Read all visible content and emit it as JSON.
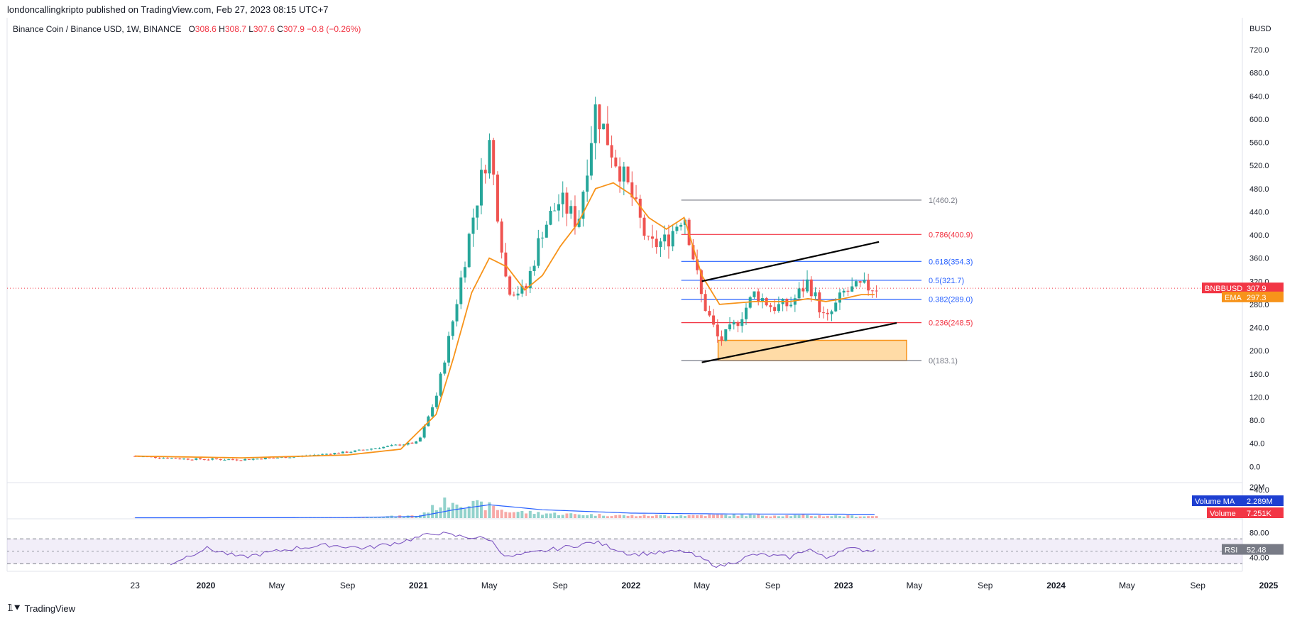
{
  "header": {
    "published": "londoncallingkripto published on TradingView.com, Feb 27, 2023 08:15 UTC+7"
  },
  "legend": {
    "symbol": "Binance Coin / Binance USD, 1W, BINANCE",
    "o_label": "O",
    "o_value": "308.6",
    "h_label": "H",
    "h_value": "308.7",
    "l_label": "L",
    "l_value": "307.6",
    "c_label": "C",
    "c_value": "307.9",
    "change": "−0.8 (−0.26%)"
  },
  "colors": {
    "up": "#26a69a",
    "down": "#ef5350",
    "ema": "#f7931a",
    "fib_gray": "#787b86",
    "fib_red": "#f23645",
    "fib_blue": "#2962ff",
    "volume_ma": "#2962ff",
    "rsi": "#7e57c2",
    "zone_fill": "#ffcc80",
    "zone_border": "#f7931a"
  },
  "chart_data": [
    {
      "type": "candlestick",
      "title": "Binance Coin / Binance USD, 1W, BINANCE",
      "currency_label": "BUSD",
      "ylim": [
        -40,
        720
      ],
      "y_ticks": [
        "720.0",
        "680.0",
        "640.0",
        "600.0",
        "560.0",
        "520.0",
        "480.0",
        "440.0",
        "400.0",
        "360.0",
        "320.0",
        "280.0",
        "240.0",
        "200.0",
        "160.0",
        "120.0",
        "80.0",
        "40.0",
        "0.0",
        "−40.0"
      ],
      "x_ticks": [
        "23",
        "2020",
        "May",
        "Sep",
        "2021",
        "May",
        "Sep",
        "2022",
        "May",
        "Sep",
        "2023",
        "May",
        "Sep",
        "2024",
        "May",
        "Sep",
        "2025"
      ],
      "last_price": {
        "label": "BNBBUSD",
        "value": "307.9"
      },
      "ema_badge": {
        "label": "EMA",
        "value": "297.3"
      },
      "ema_keypoints": [
        [
          "2019-09",
          18
        ],
        [
          "2020-03",
          15
        ],
        [
          "2020-09",
          20
        ],
        [
          "2020-12",
          30
        ],
        [
          "2021-02",
          90
        ],
        [
          "2021-03",
          190
        ],
        [
          "2021-04",
          300
        ],
        [
          "2021-05",
          360
        ],
        [
          "2021-06",
          345
        ],
        [
          "2021-07",
          305
        ],
        [
          "2021-08",
          330
        ],
        [
          "2021-09",
          380
        ],
        [
          "2021-10",
          420
        ],
        [
          "2021-11",
          480
        ],
        [
          "2021-12",
          490
        ],
        [
          "2022-01",
          470
        ],
        [
          "2022-02",
          430
        ],
        [
          "2022-03",
          410
        ],
        [
          "2022-04",
          430
        ],
        [
          "2022-05",
          330
        ],
        [
          "2022-06",
          280
        ],
        [
          "2022-08",
          285
        ],
        [
          "2022-10",
          285
        ],
        [
          "2022-11",
          290
        ],
        [
          "2022-12",
          285
        ],
        [
          "2023-01",
          290
        ],
        [
          "2023-02",
          297
        ]
      ],
      "price_keypoints": [
        [
          "2019-09",
          18
        ],
        [
          "2019-12",
          13
        ],
        [
          "2020-03",
          12
        ],
        [
          "2020-06",
          17
        ],
        [
          "2020-09",
          25
        ],
        [
          "2020-12",
          38
        ],
        [
          "2021-01",
          42
        ],
        [
          "2021-02",
          120
        ],
        [
          "2021-03",
          260
        ],
        [
          "2021-04",
          420
        ],
        [
          "2021-05",
          560
        ],
        [
          "2021-06",
          310
        ],
        [
          "2021-07",
          300
        ],
        [
          "2021-08",
          410
        ],
        [
          "2021-09",
          460
        ],
        [
          "2021-10",
          420
        ],
        [
          "2021-11",
          620
        ],
        [
          "2021-12",
          540
        ],
        [
          "2022-01",
          470
        ],
        [
          "2022-02",
          380
        ],
        [
          "2022-03",
          390
        ],
        [
          "2022-04",
          440
        ],
        [
          "2022-05",
          290
        ],
        [
          "2022-06",
          215
        ],
        [
          "2022-07",
          250
        ],
        [
          "2022-08",
          300
        ],
        [
          "2022-09",
          275
        ],
        [
          "2022-10",
          280
        ],
        [
          "2022-11",
          320
        ],
        [
          "2022-12",
          250
        ],
        [
          "2023-01",
          300
        ],
        [
          "2023-02",
          310
        ]
      ],
      "fib_levels": [
        {
          "ratio": "1",
          "value": 460.2,
          "label": "1(460.2)",
          "color": "gray"
        },
        {
          "ratio": "0.786",
          "value": 400.9,
          "label": "0.786(400.9)",
          "color": "red"
        },
        {
          "ratio": "0.618",
          "value": 354.3,
          "label": "0.618(354.3)",
          "color": "blue"
        },
        {
          "ratio": "0.5",
          "value": 321.7,
          "label": "0.5(321.7)",
          "color": "blue"
        },
        {
          "ratio": "0.382",
          "value": 289.0,
          "label": "0.382(289.0)",
          "color": "blue"
        },
        {
          "ratio": "0.236",
          "value": 248.5,
          "label": "0.236(248.5)",
          "color": "red"
        },
        {
          "ratio": "0",
          "value": 183.1,
          "label": "0(183.1)",
          "color": "gray"
        }
      ],
      "fib_range": {
        "start": "2022-04",
        "end": "2023-05"
      },
      "channel_lines": [
        {
          "from": [
            "2022-05",
            320
          ],
          "to": [
            "2023-03",
            388
          ]
        },
        {
          "from": [
            "2022-05",
            180
          ],
          "to": [
            "2023-04",
            248
          ]
        }
      ],
      "support_zone": {
        "from": "2022-06",
        "to": "2023-04",
        "low": 183,
        "high": 218
      }
    },
    {
      "type": "bar",
      "title": "Volume",
      "y_tick": "20M",
      "ylim": [
        0,
        20
      ],
      "volume_ma": {
        "label": "Volume MA",
        "value": "2.289M"
      },
      "volume": {
        "label": "Volume",
        "value": "7.251K"
      },
      "volume_keypoints": [
        [
          "2019-09",
          0.2
        ],
        [
          "2020-09",
          0.4
        ],
        [
          "2021-01",
          1.5
        ],
        [
          "2021-02",
          7
        ],
        [
          "2021-03",
          11
        ],
        [
          "2021-04",
          8
        ],
        [
          "2021-05",
          7
        ],
        [
          "2021-06",
          4
        ],
        [
          "2021-09",
          2.5
        ],
        [
          "2022-01",
          1.5
        ],
        [
          "2022-06",
          1.8
        ],
        [
          "2022-11",
          1.5
        ],
        [
          "2023-02",
          1.2
        ]
      ],
      "ma_keypoints": [
        [
          "2019-09",
          0.2
        ],
        [
          "2020-09",
          0.3
        ],
        [
          "2021-01",
          1.0
        ],
        [
          "2021-03",
          5
        ],
        [
          "2021-05",
          8
        ],
        [
          "2021-08",
          5
        ],
        [
          "2022-01",
          3
        ],
        [
          "2022-06",
          2.5
        ],
        [
          "2023-02",
          2.3
        ]
      ]
    },
    {
      "type": "line",
      "title": "RSI",
      "ylim": [
        20,
        100
      ],
      "y_ticks": [
        "80.00",
        "40.00"
      ],
      "rsi": {
        "label": "RSI",
        "value": "52.48"
      },
      "rsi_keypoints": [
        [
          "2019-11",
          30
        ],
        [
          "2020-01",
          55
        ],
        [
          "2020-03",
          40
        ],
        [
          "2020-06",
          55
        ],
        [
          "2020-08",
          60
        ],
        [
          "2020-10",
          55
        ],
        [
          "2020-12",
          65
        ],
        [
          "2021-02",
          80
        ],
        [
          "2021-03",
          75
        ],
        [
          "2021-05",
          70
        ],
        [
          "2021-06",
          40
        ],
        [
          "2021-09",
          55
        ],
        [
          "2021-11",
          65
        ],
        [
          "2022-01",
          45
        ],
        [
          "2022-04",
          50
        ],
        [
          "2022-06",
          25
        ],
        [
          "2022-08",
          45
        ],
        [
          "2022-10",
          40
        ],
        [
          "2022-11",
          55
        ],
        [
          "2022-12",
          38
        ],
        [
          "2023-01",
          55
        ],
        [
          "2023-02",
          52
        ]
      ]
    }
  ],
  "footer": {
    "brand": "TradingView"
  }
}
